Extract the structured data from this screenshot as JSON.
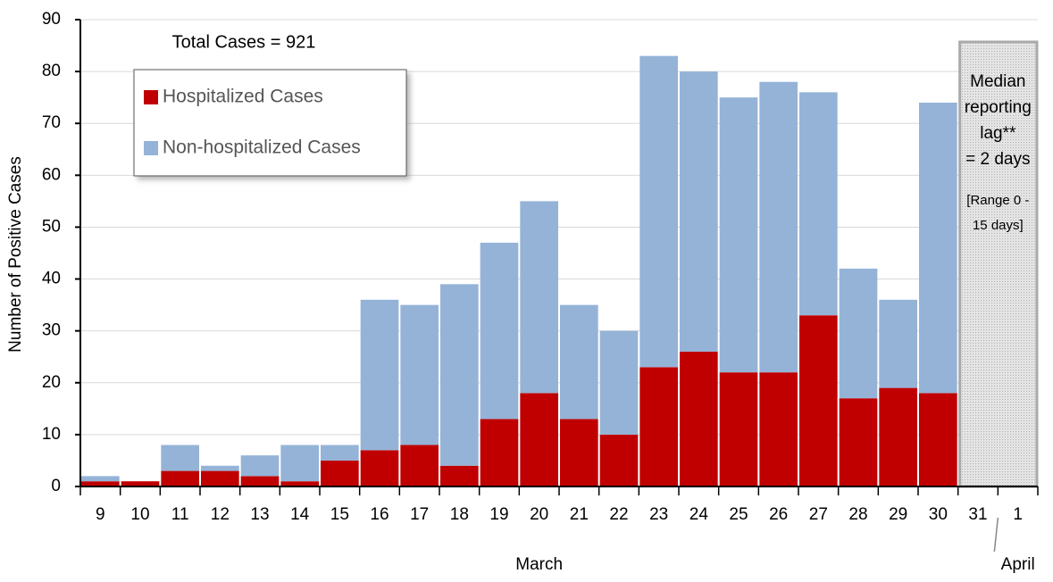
{
  "chart_data": {
    "type": "stacked_bar",
    "y_label": "Number of Positive Cases",
    "total_note": "Total Cases = 921",
    "categories": [
      "9",
      "10",
      "11",
      "12",
      "13",
      "14",
      "15",
      "16",
      "17",
      "18",
      "19",
      "20",
      "21",
      "22",
      "23",
      "24",
      "25",
      "26",
      "27",
      "28",
      "29",
      "30",
      "31",
      "1"
    ],
    "months": [
      {
        "label": "March",
        "from": 0,
        "to": 22
      },
      {
        "label": "April",
        "from": 23,
        "to": 23
      }
    ],
    "series": [
      {
        "name": "Hospitalized Cases",
        "color": "#c00000",
        "values": [
          1,
          1,
          3,
          3,
          2,
          1,
          5,
          7,
          8,
          4,
          13,
          18,
          13,
          10,
          23,
          26,
          22,
          22,
          33,
          17,
          19,
          18,
          null,
          null
        ]
      },
      {
        "name": "Non-hospitalized Cases",
        "color": "#95b3d7",
        "values": [
          1,
          0,
          5,
          1,
          4,
          7,
          3,
          29,
          27,
          35,
          34,
          37,
          22,
          20,
          60,
          54,
          53,
          56,
          43,
          25,
          17,
          56,
          null,
          null
        ]
      }
    ],
    "lag_note": {
      "lines": [
        "Median",
        "reporting",
        "lag**",
        "= 2 days"
      ],
      "range_lines": [
        "[Range 0 -",
        "15 days]"
      ],
      "from": 22,
      "to": 23
    },
    "ylim": [
      0,
      90
    ],
    "yticks": [
      0,
      10,
      20,
      30,
      40,
      50,
      60,
      70,
      80,
      90
    ],
    "grid": true
  }
}
